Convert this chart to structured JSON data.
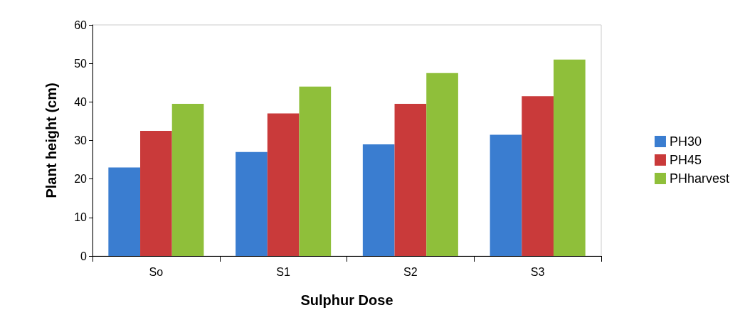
{
  "chart_data": {
    "type": "bar",
    "xlabel": "Sulphur Dose",
    "ylabel": "Plant height (cm)",
    "categories": [
      "So",
      "S1",
      "S2",
      "S3"
    ],
    "series": [
      {
        "name": "PH30",
        "color": "#3a7dd0",
        "values": [
          23,
          27,
          29,
          31.5
        ]
      },
      {
        "name": "PH45",
        "color": "#c93a3a",
        "values": [
          32.5,
          37,
          39.5,
          41.5
        ]
      },
      {
        "name": "PHharvest",
        "color": "#8fbf3a",
        "values": [
          39.5,
          44,
          47.5,
          51
        ]
      }
    ],
    "ylim": [
      0,
      60
    ],
    "yticks": [
      0,
      10,
      20,
      30,
      40,
      50,
      60
    ],
    "grid": false,
    "legend": "right"
  }
}
